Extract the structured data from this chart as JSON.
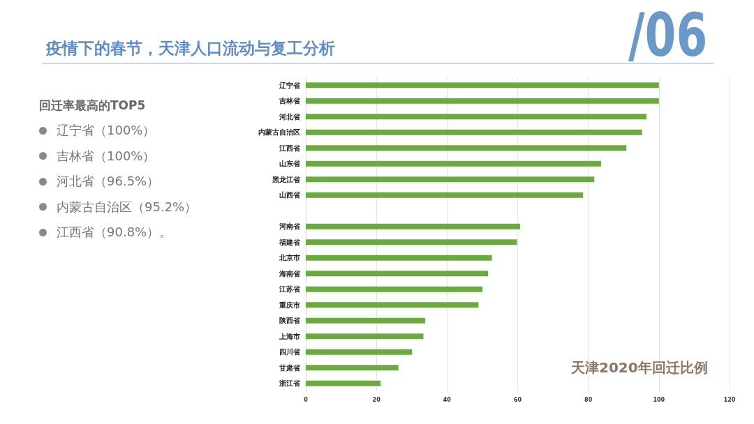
{
  "chart_data": {
    "type": "bar",
    "orientation": "horizontal",
    "title": "疫情下的春节，天津人口流动与复工分析",
    "categories": [
      "辽宁省",
      "吉林省",
      "河北省",
      "内蒙古自治区",
      "江西省",
      "山东省",
      "黑龙江省",
      "山西省",
      null,
      "河南省",
      "福建省",
      "北京市",
      "海南省",
      "江苏省",
      "重庆市",
      "陕西省",
      "上海市",
      "四川省",
      "甘肃省",
      "浙江省"
    ],
    "values": [
      100,
      100,
      96.5,
      95.2,
      90.8,
      83.6,
      81.7,
      78.5,
      null,
      60.7,
      59.8,
      52.7,
      51.6,
      50.0,
      48.9,
      33.8,
      33.3,
      30.1,
      26.2,
      21.2
    ],
    "color": "#6aaa3f",
    "xlim": [
      0,
      120
    ],
    "xticks": [
      0,
      20,
      40,
      60,
      80,
      100,
      120
    ],
    "grid": "x",
    "annotations": [
      "/06",
      "回迁率最高的TOP5",
      "辽宁省（100%）",
      "吉林省（100%）",
      "河北省（96.5%）",
      "内蒙古自治区（95.2%）",
      "江西省（90.8%）。",
      "天津2020年回迁比例"
    ]
  }
}
